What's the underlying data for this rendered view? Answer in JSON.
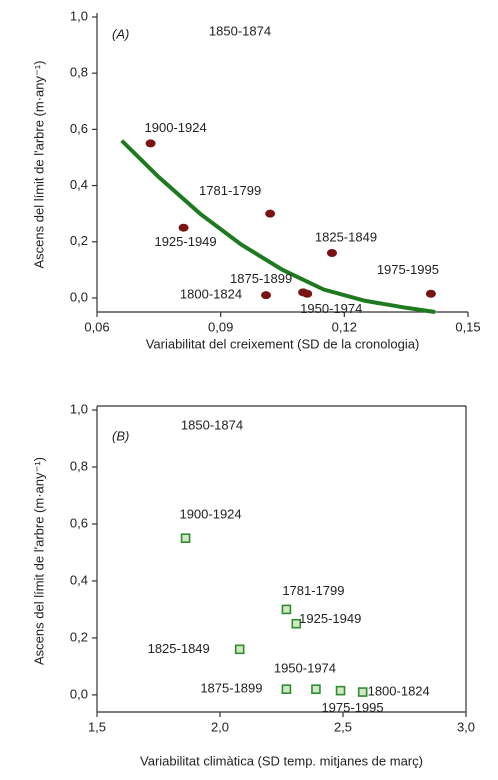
{
  "chart_data": [
    {
      "type": "scatter",
      "panel_label": "(A)",
      "xlabel": "Variabilitat del creixement (SD de la cronologia)",
      "ylabel": "Ascens del límit de l'arbre (m·any⁻¹)",
      "xlim": [
        0.06,
        0.15
      ],
      "xticks": [
        {
          "value": 0.06,
          "label": "0,06"
        },
        {
          "value": 0.09,
          "label": "0,09"
        },
        {
          "value": 0.12,
          "label": "0,12"
        },
        {
          "value": 0.15,
          "label": "0,15"
        }
      ],
      "ylim": [
        -0.05,
        1.0
      ],
      "yticks": [
        {
          "value": 0,
          "label": "0,0"
        },
        {
          "value": 0.2,
          "label": "0,2"
        },
        {
          "value": 0.4,
          "label": "0,4"
        },
        {
          "value": 0.6,
          "label": "0,6"
        },
        {
          "value": 0.8,
          "label": "0,8"
        },
        {
          "value": 1.0,
          "label": "1,0"
        }
      ],
      "marker": "circle",
      "color": "#7a1414",
      "frame": false,
      "x": [
        0.073,
        0.081,
        0.102,
        0.117,
        0.11,
        0.101,
        0.111,
        0.141
      ],
      "values": [
        0.55,
        0.25,
        0.3,
        0.16,
        0.02,
        0.01,
        0.015,
        0.015
      ],
      "point_labels": [
        "1900-1924",
        "1925-1949",
        "1781-1799",
        "1825-1849",
        "1875-1899",
        "1800-1824",
        "1950-1974",
        "1975-1995"
      ],
      "annotation": "1850-1874",
      "fit": {
        "color": "#1e7a1e",
        "x": [
          0.066,
          0.075,
          0.085,
          0.095,
          0.105,
          0.115,
          0.125,
          0.135,
          0.142
        ],
        "values": [
          0.56,
          0.43,
          0.3,
          0.19,
          0.1,
          0.03,
          -0.01,
          -0.035,
          -0.05
        ]
      }
    },
    {
      "type": "scatter",
      "panel_label": "(B)",
      "xlabel": "Variabilitat climàtica (SD temp. mitjanes de març)",
      "ylabel": "Ascens del límit de l'arbre (m·any⁻¹)",
      "xlim": [
        1.5,
        3.0
      ],
      "xticks": [
        {
          "value": 1.5,
          "label": "1,5"
        },
        {
          "value": 2.0,
          "label": "2,0"
        },
        {
          "value": 2.5,
          "label": "2,5"
        },
        {
          "value": 3.0,
          "label": "3,0"
        }
      ],
      "ylim": [
        -0.06,
        1.0
      ],
      "yticks": [
        {
          "value": 0,
          "label": "0,0"
        },
        {
          "value": 0.2,
          "label": "0,2"
        },
        {
          "value": 0.4,
          "label": "0,4"
        },
        {
          "value": 0.6,
          "label": "0,6"
        },
        {
          "value": 0.8,
          "label": "0,8"
        },
        {
          "value": 1.0,
          "label": "1,0"
        }
      ],
      "marker": "square",
      "color": "#2e8b2e",
      "frame": true,
      "x": [
        1.86,
        2.27,
        2.31,
        2.08,
        2.27,
        2.39,
        2.49,
        2.58
      ],
      "values": [
        0.55,
        0.3,
        0.25,
        0.16,
        0.02,
        0.02,
        0.015,
        0.01
      ],
      "point_labels": [
        "1900-1924",
        "1781-1799",
        "1925-1949",
        "1825-1849",
        "1875-1899",
        "1950-1974",
        "1975-1995",
        "1800-1824"
      ],
      "annotation": "1850-1874"
    }
  ]
}
